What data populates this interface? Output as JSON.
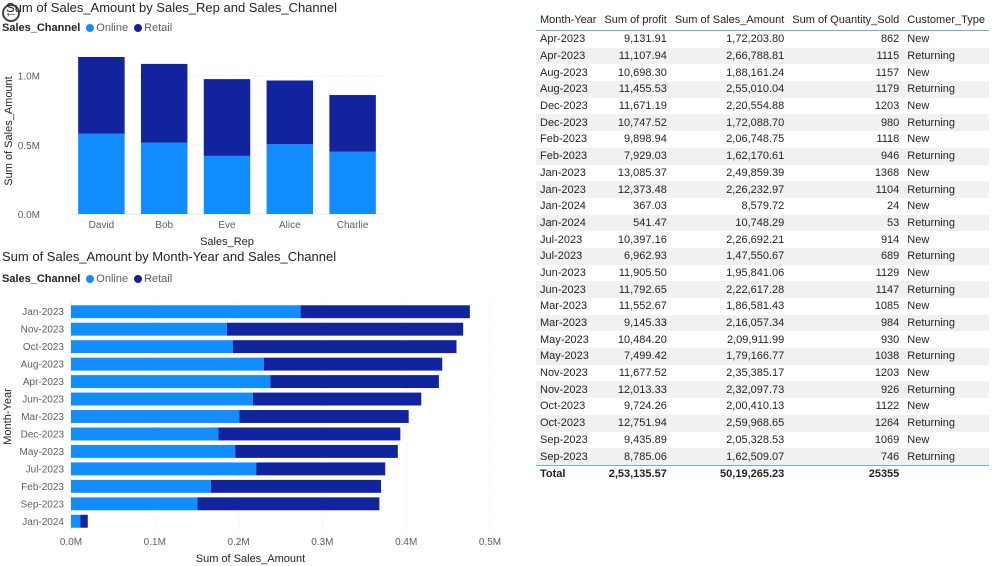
{
  "colors": {
    "online": "#118DFF",
    "retail": "#12239E",
    "grid": "#e6e6e6",
    "axis_text": "#605e5c"
  },
  "icons": {
    "back": "back-arrow-icon"
  },
  "chart1": {
    "title": "Sum of Sales_Amount by Sales_Rep and Sales_Channel",
    "legend_title": "Sales_Channel",
    "legend_items": [
      "Online",
      "Retail"
    ]
  },
  "chart2": {
    "title": "Sum of Sales_Amount by Month-Year and Sales_Channel",
    "legend_title": "Sales_Channel",
    "legend_items": [
      "Online",
      "Retail"
    ]
  },
  "chart_data": [
    {
      "type": "bar",
      "orientation": "vertical",
      "stacked": true,
      "title": "Sum of Sales_Amount by Sales_Rep and Sales_Channel",
      "xlabel": "Sales_Rep",
      "ylabel": "Sum of Sales_Amount",
      "categories": [
        "David",
        "Bob",
        "Eve",
        "Alice",
        "Charlie"
      ],
      "series": [
        {
          "name": "Online",
          "values": [
            580000,
            515000,
            420000,
            505000,
            450000
          ]
        },
        {
          "name": "Retail",
          "values": [
            555000,
            570000,
            555000,
            460000,
            410000
          ]
        }
      ],
      "ylim": [
        0,
        1200000
      ],
      "yticks": [
        0,
        500000,
        1000000
      ],
      "ytick_labels": [
        "0.0M",
        "0.5M",
        "1.0M"
      ],
      "legend": "top-left",
      "grid": true
    },
    {
      "type": "bar",
      "orientation": "horizontal",
      "stacked": true,
      "title": "Sum of Sales_Amount by Month-Year and Sales_Channel",
      "xlabel": "Sum of Sales_Amount",
      "ylabel": "Month-Year",
      "categories": [
        "Jan-2023",
        "Nov-2023",
        "Oct-2023",
        "Aug-2023",
        "Apr-2023",
        "Jun-2023",
        "Mar-2023",
        "Dec-2023",
        "May-2023",
        "Jul-2023",
        "Feb-2023",
        "Sep-2023",
        "Jan-2024"
      ],
      "series": [
        {
          "name": "Online",
          "values": [
            274000,
            186000,
            193000,
            230000,
            238000,
            217000,
            201000,
            176000,
            196000,
            221000,
            167000,
            151000,
            11000
          ]
        },
        {
          "name": "Retail",
          "values": [
            202000,
            282000,
            267000,
            213000,
            201000,
            201000,
            202000,
            217000,
            194000,
            154000,
            203000,
            217000,
            9000
          ]
        }
      ],
      "xlim": [
        0,
        500000
      ],
      "xticks": [
        0,
        100000,
        200000,
        300000,
        400000,
        500000
      ],
      "xtick_labels": [
        "0.0M",
        "0.1M",
        "0.2M",
        "0.3M",
        "0.4M",
        "0.5M"
      ],
      "legend": "top-left",
      "grid": true
    },
    {
      "type": "table",
      "columns": [
        "Month-Year",
        "Sum of profit",
        "Sum of Sales_Amount",
        "Sum of Quantity_Sold",
        "Customer_Type"
      ],
      "rows": [
        [
          "Apr-2023",
          "9,131.91",
          "1,72,203.80",
          "862",
          "New"
        ],
        [
          "Apr-2023",
          "11,107.94",
          "2,66,788.81",
          "1115",
          "Returning"
        ],
        [
          "Aug-2023",
          "10,698.30",
          "1,88,161.24",
          "1157",
          "New"
        ],
        [
          "Aug-2023",
          "11,455.53",
          "2,55,010.04",
          "1179",
          "Returning"
        ],
        [
          "Dec-2023",
          "11,671.19",
          "2,20,554.88",
          "1203",
          "New"
        ],
        [
          "Dec-2023",
          "10,747.52",
          "1,72,088.70",
          "980",
          "Returning"
        ],
        [
          "Feb-2023",
          "9,898.94",
          "2,06,748.75",
          "1118",
          "New"
        ],
        [
          "Feb-2023",
          "7,929.03",
          "1,62,170.61",
          "946",
          "Returning"
        ],
        [
          "Jan-2023",
          "13,085.37",
          "2,49,859.39",
          "1368",
          "New"
        ],
        [
          "Jan-2023",
          "12,373.48",
          "2,26,232.97",
          "1104",
          "Returning"
        ],
        [
          "Jan-2024",
          "367.03",
          "8,579.72",
          "24",
          "New"
        ],
        [
          "Jan-2024",
          "541.47",
          "10,748.29",
          "53",
          "Returning"
        ],
        [
          "Jul-2023",
          "10,397.16",
          "2,26,692.21",
          "914",
          "New"
        ],
        [
          "Jul-2023",
          "6,962.93",
          "1,47,550.67",
          "689",
          "Returning"
        ],
        [
          "Jun-2023",
          "11,905.50",
          "1,95,841.06",
          "1129",
          "New"
        ],
        [
          "Jun-2023",
          "11,792.65",
          "2,22,617.28",
          "1147",
          "Returning"
        ],
        [
          "Mar-2023",
          "11,552.67",
          "1,86,581.43",
          "1085",
          "New"
        ],
        [
          "Mar-2023",
          "9,145.33",
          "2,16,057.34",
          "984",
          "Returning"
        ],
        [
          "May-2023",
          "10,484.20",
          "2,09,911.99",
          "930",
          "New"
        ],
        [
          "May-2023",
          "7,499.42",
          "1,79,166.77",
          "1038",
          "Returning"
        ],
        [
          "Nov-2023",
          "11,677.52",
          "2,35,385.17",
          "1203",
          "New"
        ],
        [
          "Nov-2023",
          "12,013.33",
          "2,32,097.73",
          "926",
          "Returning"
        ],
        [
          "Oct-2023",
          "9,724.26",
          "2,00,410.13",
          "1122",
          "New"
        ],
        [
          "Oct-2023",
          "12,751.94",
          "2,59,968.65",
          "1264",
          "Returning"
        ],
        [
          "Sep-2023",
          "9,435.89",
          "2,05,328.53",
          "1069",
          "New"
        ],
        [
          "Sep-2023",
          "8,785.06",
          "1,62,509.07",
          "746",
          "Returning"
        ]
      ],
      "total": [
        "Total",
        "2,53,135.57",
        "50,19,265.23",
        "25355",
        ""
      ]
    }
  ]
}
